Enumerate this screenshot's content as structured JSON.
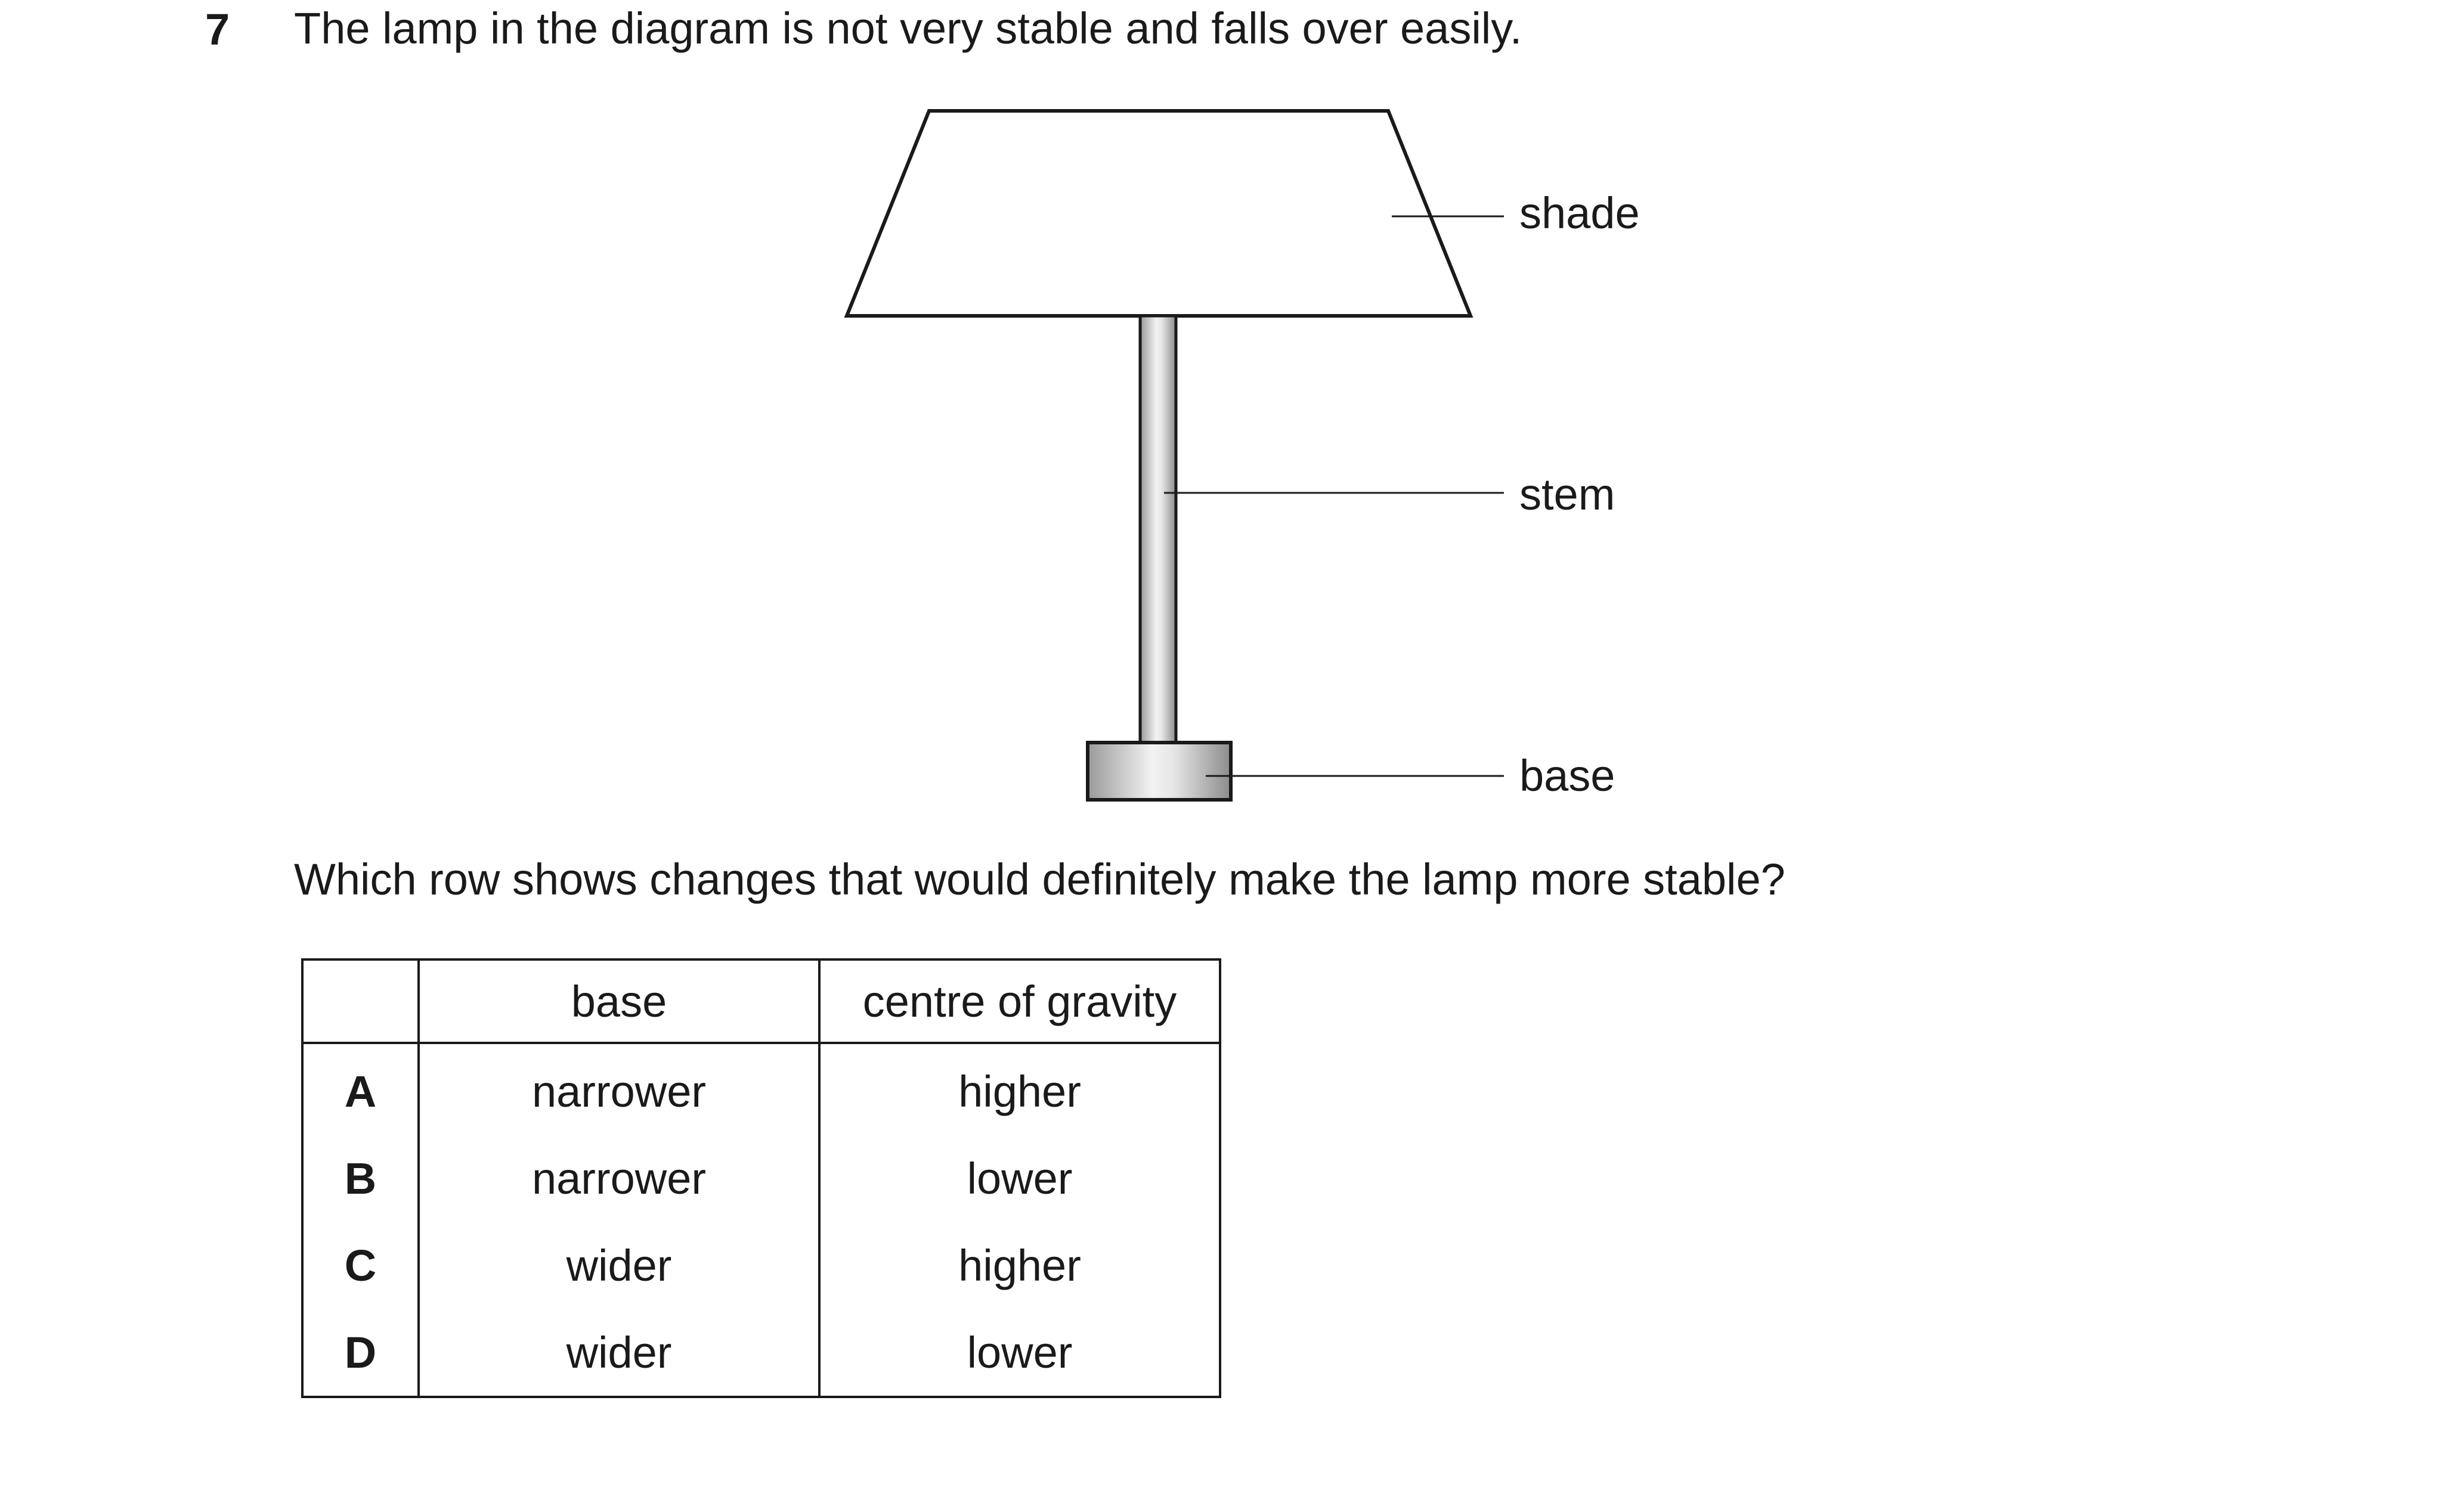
{
  "question": {
    "number": "7",
    "text": "The lamp in the diagram is not very stable and falls over easily."
  },
  "diagram": {
    "labels": {
      "shade": "shade",
      "stem": "stem",
      "base": "base"
    }
  },
  "subquestion": "Which row shows changes that would definitely make the lamp more stable?",
  "table": {
    "headers": [
      "",
      "base",
      "centre of gravity"
    ],
    "rows": [
      {
        "option": "A",
        "base": "narrower",
        "centre_of_gravity": "higher"
      },
      {
        "option": "B",
        "base": "narrower",
        "centre_of_gravity": "lower"
      },
      {
        "option": "C",
        "base": "wider",
        "centre_of_gravity": "higher"
      },
      {
        "option": "D",
        "base": "wider",
        "centre_of_gravity": "lower"
      }
    ]
  }
}
